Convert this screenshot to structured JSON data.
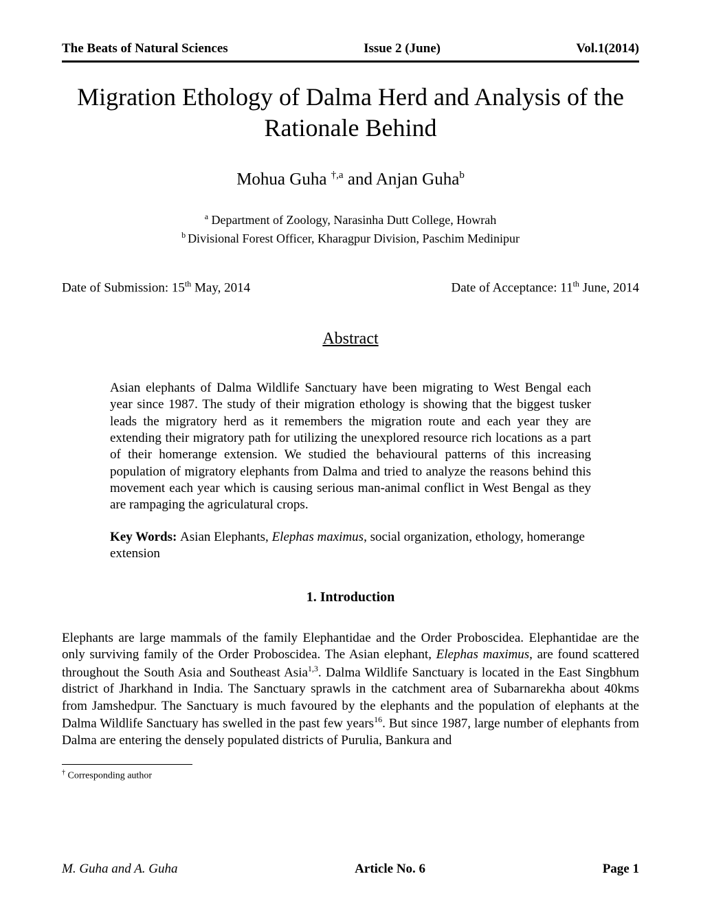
{
  "header": {
    "journal": "The Beats of Natural Sciences",
    "issue": "Issue 2 (June)",
    "volume": "Vol.1(2014)"
  },
  "title": "Migration Ethology of Dalma Herd and Analysis of the Rationale Behind",
  "authors": {
    "a1_name": "Mohua Guha ",
    "a1_sup": "†,a",
    "conj": " and ",
    "a2_name": "Anjan Guha",
    "a2_sup": "b"
  },
  "affiliations": {
    "a_sup": "a",
    "a_text": "  Department of Zoology, Narasinha Dutt College, Howrah",
    "b_sup": "b ",
    "b_text": "Divisional Forest Officer, Kharagpur Division, Paschim Medinipur"
  },
  "dates": {
    "sub_prefix": "Date of Submission: 15",
    "sub_sup": "th",
    "sub_suffix": " May, 2014",
    "acc_prefix": "Date of Acceptance: 11",
    "acc_sup": "th",
    "acc_suffix": " June, 2014"
  },
  "abstract_heading": "Abstract",
  "abstract_text": "Asian elephants of Dalma Wildlife Sanctuary have been migrating to West Bengal each year since 1987. The study of their migration ethology is showing that the biggest tusker leads the migratory herd as it remembers the migration route and each year they are extending their migratory path for utilizing the unexplored resource rich locations as a part of their homerange extension. We studied the behavioural patterns of this increasing population of migratory elephants from Dalma and tried to analyze the reasons behind this movement each year which is causing serious man-animal conflict in West Bengal as they are rampaging the agriculatural crops.",
  "keywords": {
    "label": "Key Words: ",
    "pre_italic": "Asian Elephants, ",
    "italic": "Elephas maximus",
    "post_italic": ", social organization, ethology, homerange extension"
  },
  "section1_heading": "1.  Introduction",
  "intro": {
    "p1": "Elephants are large mammals of the family Elephantidae and the Order Proboscidea. Elephantidae are the only surviving family of the Order Proboscidea. The Asian elephant, ",
    "italic": "Elephas maximus",
    "p2": ", are found scattered throughout the South Asia and Southeast Asia",
    "sup1": "1,3",
    "p3": ". Dalma Wildlife Sanctuary is located in the East Singbhum district of Jharkhand in India. The Sanctuary sprawls in the catchment area of Subarnarekha about 40kms from Jamshedpur. The Sanctuary is much favoured by the elephants and the population of elephants at the Dalma Wildlife Sanctuary has swelled in the past few years",
    "sup2": "16",
    "p4": ". But since 1987, large number of elephants from Dalma are entering the densely populated districts of Purulia, Bankura and"
  },
  "footnote": {
    "sup": "†",
    "text": " Corresponding author"
  },
  "footer": {
    "left": "M. Guha and A. Guha",
    "center": "Article No. 6",
    "right": "Page 1"
  }
}
